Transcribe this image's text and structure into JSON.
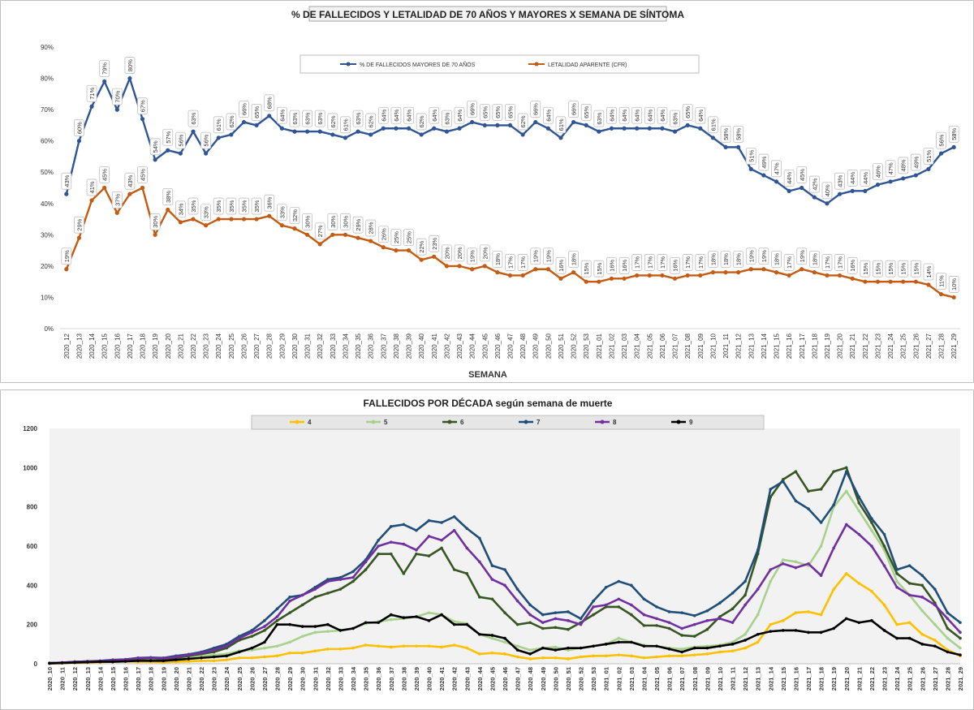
{
  "chart_data": [
    {
      "type": "line",
      "title": "% DE FALLECIDOS Y LETALIDAD DE 70 AÑOS Y MAYORES X SEMANA DE SÍNTOMA",
      "xlabel": "SEMANA",
      "ylabel": "",
      "ylim": [
        0,
        90
      ],
      "ytick_labels": [
        "0%",
        "10%",
        "20%",
        "30%",
        "40%",
        "50%",
        "60%",
        "70%",
        "80%",
        "90%"
      ],
      "grid": false,
      "legend_position": "top",
      "categories": [
        "2020_12",
        "2020_13",
        "2020_14",
        "2020_15",
        "2020_16",
        "2020_17",
        "2020_18",
        "2020_19",
        "2020_20",
        "2020_21",
        "2020_22",
        "2020_23",
        "2020_24",
        "2020_25",
        "2020_26",
        "2020_27",
        "2020_28",
        "2020_29",
        "2020_30",
        "2020_31",
        "2020_32",
        "2020_33",
        "2020_34",
        "2020_35",
        "2020_36",
        "2020_37",
        "2020_38",
        "2020_39",
        "2020_40",
        "2020_41",
        "2020_42",
        "2020_43",
        "2020_44",
        "2020_45",
        "2020_46",
        "2020_47",
        "2020_48",
        "2020_49",
        "2020_50",
        "2020_51",
        "2020_52",
        "2020_53",
        "2021_01",
        "2021_02",
        "2021_03",
        "2021_04",
        "2021_05",
        "2021_06",
        "2021_07",
        "2021_08",
        "2021_09",
        "2021_10",
        "2021_11",
        "2021_12",
        "2021_13",
        "2021_14",
        "2021_15",
        "2021_16",
        "2021_17",
        "2021_18",
        "2021_19",
        "2021_20",
        "2021_21",
        "2021_22",
        "2021_23",
        "2021_24",
        "2021_25",
        "2021_26",
        "2021_27",
        "2021_28",
        "2021_29"
      ],
      "series": [
        {
          "name": "% DE FALLECIDOS MAYORES DE 70 AÑOS",
          "color": "#2f5597",
          "values": [
            43,
            60,
            71,
            79,
            70,
            80,
            67,
            54,
            57,
            56,
            63,
            56,
            61,
            62,
            66,
            65,
            68,
            64,
            63,
            63,
            63,
            62,
            61,
            63,
            62,
            64,
            64,
            64,
            62,
            64,
            63,
            64,
            66,
            65,
            65,
            65,
            62,
            66,
            64,
            61,
            66,
            65,
            63,
            64,
            64,
            64,
            64,
            64,
            63,
            65,
            64,
            61,
            58,
            58,
            51,
            49,
            47,
            44,
            45,
            42,
            40,
            43,
            44,
            44,
            46,
            47,
            48,
            49,
            51,
            56,
            58
          ]
        },
        {
          "name": "LETALIDAD APARENTE (CFR)",
          "color": "#c55a11",
          "values": [
            19,
            29,
            41,
            45,
            37,
            43,
            45,
            30,
            38,
            34,
            35,
            33,
            35,
            35,
            35,
            35,
            36,
            33,
            32,
            30,
            27,
            30,
            30,
            29,
            28,
            26,
            25,
            25,
            22,
            23,
            20,
            20,
            19,
            20,
            18,
            17,
            17,
            19,
            19,
            16,
            18,
            15,
            15,
            16,
            16,
            17,
            17,
            17,
            16,
            17,
            17,
            18,
            18,
            18,
            19,
            19,
            18,
            17,
            19,
            18,
            17,
            17,
            16,
            15,
            15,
            15,
            15,
            15,
            14,
            11,
            10
          ]
        }
      ]
    },
    {
      "type": "line",
      "title": "FALLECIDOS POR DÉCADA según semana de muerte",
      "xlabel": "",
      "ylabel": "",
      "ylim": [
        0,
        1200
      ],
      "ytick_labels": [
        "0",
        "200",
        "400",
        "600",
        "800",
        "1000",
        "1200"
      ],
      "grid": false,
      "legend_position": "top",
      "categories": [
        "2020_10",
        "2020_11",
        "2020_12",
        "2020_13",
        "2020_14",
        "2020_15",
        "2020_16",
        "2020_17",
        "2020_18",
        "2020_19",
        "2020_20",
        "2020_21",
        "2020_22",
        "2020_23",
        "2020_24",
        "2020_25",
        "2020_26",
        "2020_27",
        "2020_28",
        "2020_29",
        "2020_30",
        "2020_31",
        "2020_32",
        "2020_33",
        "2020_34",
        "2020_35",
        "2020_36",
        "2020_37",
        "2020_38",
        "2020_39",
        "2020_40",
        "2020_41",
        "2020_42",
        "2020_43",
        "2020_44",
        "2020_45",
        "2020_46",
        "2020_47",
        "2020_48",
        "2020_49",
        "2020_50",
        "2020_51",
        "2020_52",
        "2020_53",
        "2021_01",
        "2021_02",
        "2021_03",
        "2021_04",
        "2021_05",
        "2021_06",
        "2021_07",
        "2021_08",
        "2021_09",
        "2021_10",
        "2021_11",
        "2021_12",
        "2021_13",
        "2021_14",
        "2021_15",
        "2021_16",
        "2021_17",
        "2021_18",
        "2021_19",
        "2021_20",
        "2021_21",
        "2021_22",
        "2021_23",
        "2021_24",
        "2021_25",
        "2021_26",
        "2021_27",
        "2021_28",
        "2021_29"
      ],
      "series": [
        {
          "name": "4",
          "color": "#ffc000",
          "values": [
            2,
            3,
            5,
            6,
            8,
            10,
            12,
            10,
            10,
            8,
            10,
            12,
            15,
            15,
            20,
            30,
            30,
            35,
            40,
            55,
            55,
            65,
            75,
            75,
            80,
            95,
            90,
            85,
            90,
            90,
            90,
            85,
            95,
            80,
            50,
            55,
            50,
            35,
            25,
            30,
            30,
            25,
            35,
            40,
            40,
            45,
            40,
            30,
            35,
            40,
            40,
            45,
            50,
            60,
            65,
            80,
            110,
            200,
            220,
            260,
            265,
            250,
            380,
            460,
            410,
            370,
            300,
            200,
            210,
            150,
            120,
            70,
            40
          ]
        },
        {
          "name": "5",
          "color": "#a9d18e",
          "values": [
            3,
            5,
            8,
            10,
            12,
            15,
            18,
            20,
            22,
            20,
            25,
            30,
            40,
            45,
            50,
            65,
            70,
            80,
            90,
            110,
            140,
            160,
            165,
            170,
            180,
            205,
            215,
            225,
            230,
            240,
            260,
            250,
            215,
            205,
            150,
            130,
            110,
            90,
            70,
            80,
            85,
            70,
            80,
            90,
            100,
            130,
            110,
            95,
            90,
            80,
            75,
            85,
            90,
            95,
            110,
            150,
            250,
            420,
            530,
            520,
            500,
            600,
            800,
            880,
            780,
            680,
            580,
            420,
            350,
            270,
            200,
            130,
            80
          ]
        },
        {
          "name": "6",
          "color": "#375623",
          "values": [
            3,
            5,
            10,
            12,
            14,
            18,
            20,
            25,
            28,
            25,
            30,
            40,
            50,
            60,
            80,
            120,
            140,
            170,
            220,
            260,
            300,
            340,
            360,
            380,
            420,
            480,
            560,
            560,
            460,
            560,
            550,
            590,
            480,
            460,
            340,
            330,
            260,
            200,
            210,
            180,
            185,
            175,
            210,
            250,
            290,
            290,
            250,
            195,
            195,
            180,
            145,
            140,
            175,
            240,
            280,
            350,
            560,
            850,
            940,
            980,
            880,
            890,
            980,
            1000,
            820,
            720,
            600,
            460,
            410,
            400,
            310,
            180,
            130
          ]
        },
        {
          "name": "7",
          "color": "#1f4e79",
          "values": [
            4,
            6,
            10,
            12,
            15,
            20,
            22,
            30,
            32,
            30,
            40,
            48,
            60,
            80,
            100,
            140,
            170,
            220,
            280,
            340,
            350,
            390,
            430,
            440,
            470,
            530,
            630,
            700,
            710,
            680,
            730,
            720,
            750,
            690,
            640,
            500,
            480,
            380,
            300,
            250,
            260,
            265,
            230,
            320,
            390,
            420,
            400,
            330,
            290,
            265,
            260,
            245,
            270,
            310,
            360,
            420,
            580,
            890,
            930,
            830,
            790,
            720,
            810,
            980,
            850,
            740,
            660,
            480,
            500,
            450,
            380,
            260,
            210
          ]
        },
        {
          "name": "8",
          "color": "#7030a0",
          "values": [
            3,
            6,
            9,
            11,
            14,
            18,
            22,
            28,
            30,
            28,
            35,
            45,
            55,
            70,
            90,
            130,
            160,
            190,
            240,
            320,
            350,
            380,
            420,
            430,
            440,
            520,
            600,
            620,
            610,
            580,
            650,
            630,
            680,
            590,
            520,
            430,
            400,
            320,
            250,
            210,
            230,
            220,
            200,
            290,
            300,
            330,
            300,
            250,
            230,
            210,
            180,
            200,
            220,
            230,
            210,
            300,
            380,
            480,
            510,
            490,
            510,
            450,
            590,
            710,
            660,
            600,
            500,
            390,
            350,
            340,
            300,
            230,
            160
          ]
        },
        {
          "name": "9",
          "color": "#000000",
          "values": [
            2,
            4,
            6,
            8,
            10,
            10,
            12,
            15,
            15,
            15,
            20,
            25,
            30,
            35,
            40,
            60,
            80,
            110,
            200,
            200,
            190,
            190,
            200,
            170,
            180,
            210,
            210,
            250,
            235,
            240,
            220,
            250,
            200,
            200,
            150,
            145,
            130,
            70,
            50,
            80,
            70,
            80,
            80,
            90,
            100,
            110,
            110,
            90,
            90,
            75,
            60,
            80,
            80,
            90,
            100,
            120,
            150,
            165,
            170,
            170,
            160,
            160,
            180,
            230,
            210,
            220,
            170,
            130,
            130,
            100,
            90,
            60,
            45
          ]
        }
      ]
    }
  ]
}
